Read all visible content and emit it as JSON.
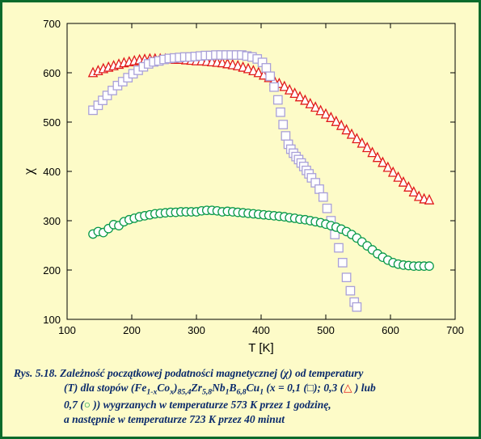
{
  "chart": {
    "type": "scatter",
    "background_color": "#fdfbc8",
    "plot_border_color": "#000000",
    "xlim": [
      100,
      700
    ],
    "ylim": [
      100,
      700
    ],
    "xticks": [
      100,
      200,
      300,
      400,
      500,
      600,
      700
    ],
    "yticks": [
      100,
      200,
      300,
      400,
      500,
      600,
      700
    ],
    "xlabel": "T [K]",
    "ylabel": "χ",
    "axis_fontsize": 15,
    "tick_fontsize": 13,
    "tick_len": 6,
    "marker_size": 5.2,
    "series": {
      "squares": {
        "marker": "square",
        "stroke": "#a9a0d8",
        "fill": "#ffffff",
        "points": [
          [
            140,
            524
          ],
          [
            148,
            534
          ],
          [
            155,
            544
          ],
          [
            162,
            554
          ],
          [
            170,
            564
          ],
          [
            178,
            574
          ],
          [
            186,
            582
          ],
          [
            194,
            590
          ],
          [
            202,
            598
          ],
          [
            210,
            605
          ],
          [
            218,
            612
          ],
          [
            226,
            618
          ],
          [
            234,
            622
          ],
          [
            242,
            624
          ],
          [
            250,
            627
          ],
          [
            258,
            629
          ],
          [
            266,
            630
          ],
          [
            274,
            631
          ],
          [
            282,
            632
          ],
          [
            290,
            632
          ],
          [
            298,
            633
          ],
          [
            306,
            634
          ],
          [
            314,
            635
          ],
          [
            322,
            635
          ],
          [
            330,
            636
          ],
          [
            338,
            636
          ],
          [
            346,
            636
          ],
          [
            354,
            636
          ],
          [
            362,
            636
          ],
          [
            370,
            636
          ],
          [
            378,
            634
          ],
          [
            386,
            632
          ],
          [
            394,
            628
          ],
          [
            402,
            621
          ],
          [
            408,
            610
          ],
          [
            414,
            593
          ],
          [
            420,
            571
          ],
          [
            426,
            545
          ],
          [
            430,
            520
          ],
          [
            434,
            495
          ],
          [
            438,
            472
          ],
          [
            442,
            455
          ],
          [
            446,
            445
          ],
          [
            450,
            437
          ],
          [
            454,
            430
          ],
          [
            458,
            424
          ],
          [
            462,
            417
          ],
          [
            466,
            410
          ],
          [
            470,
            402
          ],
          [
            474,
            395
          ],
          [
            478,
            387
          ],
          [
            484,
            377
          ],
          [
            490,
            364
          ],
          [
            496,
            348
          ],
          [
            502,
            325
          ],
          [
            508,
            300
          ],
          [
            514,
            272
          ],
          [
            520,
            245
          ],
          [
            526,
            215
          ],
          [
            532,
            185
          ],
          [
            538,
            158
          ],
          [
            544,
            135
          ],
          [
            548,
            125
          ]
        ]
      },
      "triangles": {
        "marker": "triangle",
        "stroke": "#e11a1a",
        "fill": "#ffffff",
        "points": [
          [
            140,
            600
          ],
          [
            148,
            604
          ],
          [
            156,
            608
          ],
          [
            164,
            611
          ],
          [
            172,
            614
          ],
          [
            180,
            617
          ],
          [
            188,
            620
          ],
          [
            196,
            622
          ],
          [
            204,
            624
          ],
          [
            212,
            626
          ],
          [
            220,
            627
          ],
          [
            228,
            628
          ],
          [
            236,
            628
          ],
          [
            244,
            628
          ],
          [
            252,
            628
          ],
          [
            260,
            628
          ],
          [
            268,
            627
          ],
          [
            276,
            627
          ],
          [
            284,
            626
          ],
          [
            292,
            625
          ],
          [
            300,
            624
          ],
          [
            308,
            624
          ],
          [
            316,
            623
          ],
          [
            324,
            622
          ],
          [
            332,
            621
          ],
          [
            340,
            620
          ],
          [
            348,
            618
          ],
          [
            356,
            616
          ],
          [
            364,
            614
          ],
          [
            372,
            611
          ],
          [
            380,
            608
          ],
          [
            388,
            604
          ],
          [
            396,
            600
          ],
          [
            404,
            595
          ],
          [
            412,
            590
          ],
          [
            420,
            584
          ],
          [
            428,
            578
          ],
          [
            436,
            572
          ],
          [
            444,
            565
          ],
          [
            452,
            558
          ],
          [
            460,
            551
          ],
          [
            468,
            544
          ],
          [
            476,
            537
          ],
          [
            484,
            530
          ],
          [
            492,
            523
          ],
          [
            500,
            516
          ],
          [
            508,
            509
          ],
          [
            516,
            501
          ],
          [
            524,
            493
          ],
          [
            532,
            484
          ],
          [
            540,
            475
          ],
          [
            548,
            466
          ],
          [
            556,
            457
          ],
          [
            564,
            448
          ],
          [
            572,
            438
          ],
          [
            580,
            428
          ],
          [
            588,
            418
          ],
          [
            596,
            408
          ],
          [
            604,
            398
          ],
          [
            612,
            388
          ],
          [
            620,
            378
          ],
          [
            628,
            368
          ],
          [
            636,
            358
          ],
          [
            644,
            349
          ],
          [
            652,
            344
          ],
          [
            660,
            342
          ]
        ]
      },
      "circles": {
        "marker": "circle",
        "stroke": "#0b9a4a",
        "fill": "#ffffff",
        "points": [
          [
            140,
            273
          ],
          [
            148,
            278
          ],
          [
            156,
            276
          ],
          [
            164,
            284
          ],
          [
            172,
            292
          ],
          [
            180,
            290
          ],
          [
            188,
            298
          ],
          [
            196,
            302
          ],
          [
            204,
            305
          ],
          [
            212,
            308
          ],
          [
            220,
            310
          ],
          [
            228,
            312
          ],
          [
            236,
            314
          ],
          [
            244,
            315
          ],
          [
            252,
            316
          ],
          [
            260,
            317
          ],
          [
            268,
            317
          ],
          [
            276,
            318
          ],
          [
            284,
            318
          ],
          [
            292,
            318
          ],
          [
            300,
            318
          ],
          [
            308,
            320
          ],
          [
            316,
            321
          ],
          [
            324,
            321
          ],
          [
            332,
            320
          ],
          [
            340,
            318
          ],
          [
            348,
            319
          ],
          [
            356,
            318
          ],
          [
            364,
            317
          ],
          [
            372,
            316
          ],
          [
            380,
            315
          ],
          [
            388,
            314
          ],
          [
            396,
            313
          ],
          [
            404,
            312
          ],
          [
            412,
            311
          ],
          [
            420,
            310
          ],
          [
            428,
            309
          ],
          [
            436,
            308
          ],
          [
            444,
            306
          ],
          [
            452,
            305
          ],
          [
            460,
            303
          ],
          [
            468,
            302
          ],
          [
            476,
            300
          ],
          [
            484,
            298
          ],
          [
            492,
            296
          ],
          [
            500,
            293
          ],
          [
            508,
            290
          ],
          [
            516,
            287
          ],
          [
            524,
            283
          ],
          [
            532,
            278
          ],
          [
            540,
            272
          ],
          [
            548,
            265
          ],
          [
            556,
            257
          ],
          [
            564,
            249
          ],
          [
            572,
            241
          ],
          [
            580,
            233
          ],
          [
            588,
            226
          ],
          [
            596,
            220
          ],
          [
            604,
            215
          ],
          [
            612,
            212
          ],
          [
            620,
            210
          ],
          [
            628,
            209
          ],
          [
            636,
            208
          ],
          [
            644,
            208
          ],
          [
            652,
            208
          ],
          [
            660,
            208
          ]
        ]
      }
    }
  },
  "caption": {
    "fig_label": "Rys. 5.18.",
    "line1_a": "Zależność początkowej podatności magnetycznej (χ) od temperatury",
    "line2_a": "(T) dla stopów (Fe",
    "sub1": "1-x",
    "line2_b": "Co",
    "sub2": "x",
    "line2_c": ")",
    "sub3": "85,4",
    "line2_d": "Zr",
    "sub4": "5,8",
    "line2_e": "Nb",
    "sub5": "1",
    "line2_f": "B",
    "sub6": "6,8",
    "line2_g": "Cu",
    "sub7": "1",
    "line2_h": " (x = 0,1 (",
    "sym1": "□",
    "line2_i": "); 0,3 (",
    "sym2": "△",
    "line2_j": " ) lub",
    "line3_a": "0,7 (",
    "sym3": "○",
    "line3_b": " )) wygrzanych w temperaturze 573 K przez 1 godzinę,",
    "line4": "a następnie w temperaturze 723 K przez 40 minut"
  }
}
